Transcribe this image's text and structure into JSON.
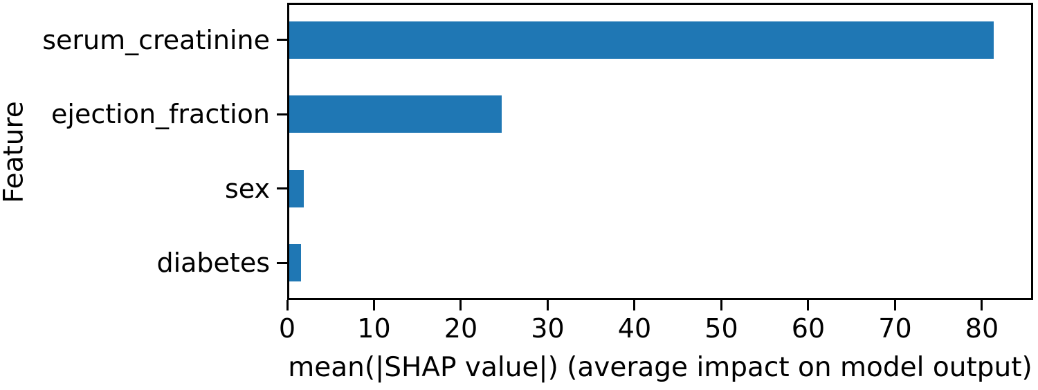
{
  "chart_data": {
    "type": "bar",
    "orientation": "horizontal",
    "title": "",
    "xlabel": "mean(|SHAP value|) (average impact on model output)",
    "ylabel": "Feature",
    "categories": [
      "serum_creatinine",
      "ejection_fraction",
      "sex",
      "diabetes"
    ],
    "values": [
      81.6,
      24.6,
      1.7,
      1.4
    ],
    "xticks": [
      0,
      10,
      20,
      30,
      40,
      50,
      60,
      70,
      80
    ],
    "xlim": [
      0,
      85.9
    ],
    "bar_color": "#1f77b4",
    "axis_color": "#000000",
    "text_color": "#000000",
    "grid": false,
    "legend_position": "none"
  }
}
